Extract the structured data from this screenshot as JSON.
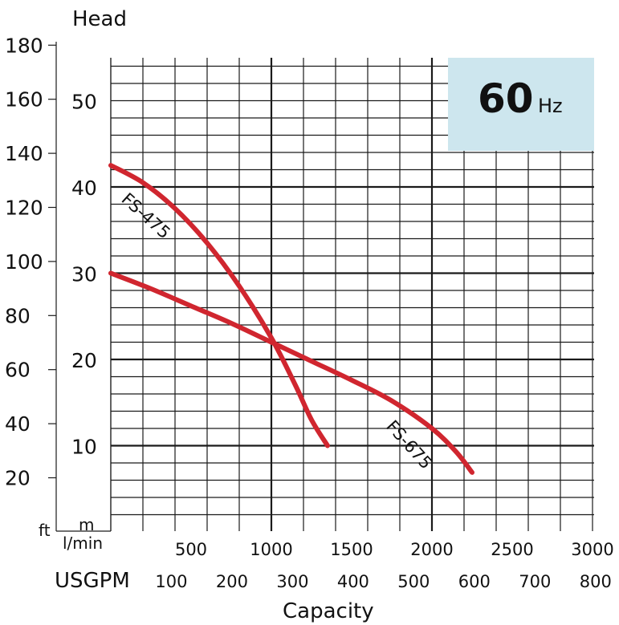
{
  "chart_data": {
    "type": "line",
    "title": "",
    "y_left_title": "Head",
    "y_left_unit": "ft",
    "y_right_unit": "m",
    "x_primary_unit": "l/min",
    "x_secondary_unit": "USGPM",
    "xlabel": "Capacity",
    "frequency_badge": {
      "value": "60",
      "unit": "Hz",
      "color": "#cde6ee"
    },
    "curve_color": "#d0262f",
    "grid": true,
    "xlim_lmin": [
      0,
      3000
    ],
    "ylim_m": [
      -3,
      55
    ],
    "ylim_ft": [
      0,
      180
    ],
    "ft_ticks": [
      "180",
      "160",
      "140",
      "120",
      "100",
      "80",
      "60",
      "40",
      "20"
    ],
    "m_ticks": [
      "50",
      "40",
      "30",
      "20",
      "10"
    ],
    "x_lmin_ticks": [
      "500",
      "1000",
      "1500",
      "2000",
      "2500",
      "3000"
    ],
    "x_gpm_ticks": [
      "100",
      "200",
      "300",
      "400",
      "500",
      "600",
      "700",
      "800"
    ],
    "series": [
      {
        "name": "FS-475",
        "x_lmin": [
          0,
          200,
          400,
          600,
          800,
          1000,
          1150,
          1250,
          1350
        ],
        "y_m": [
          42.5,
          40.5,
          37.5,
          33.5,
          28.5,
          22.5,
          17.0,
          13.0,
          10.0
        ]
      },
      {
        "name": "FS-675",
        "x_lmin": [
          0,
          250,
          500,
          750,
          1000,
          1250,
          1500,
          1750,
          2000,
          2150,
          2250
        ],
        "y_m": [
          30.0,
          28.2,
          26.2,
          24.2,
          22.0,
          19.8,
          17.6,
          15.2,
          12.0,
          9.3,
          6.9
        ]
      }
    ]
  }
}
